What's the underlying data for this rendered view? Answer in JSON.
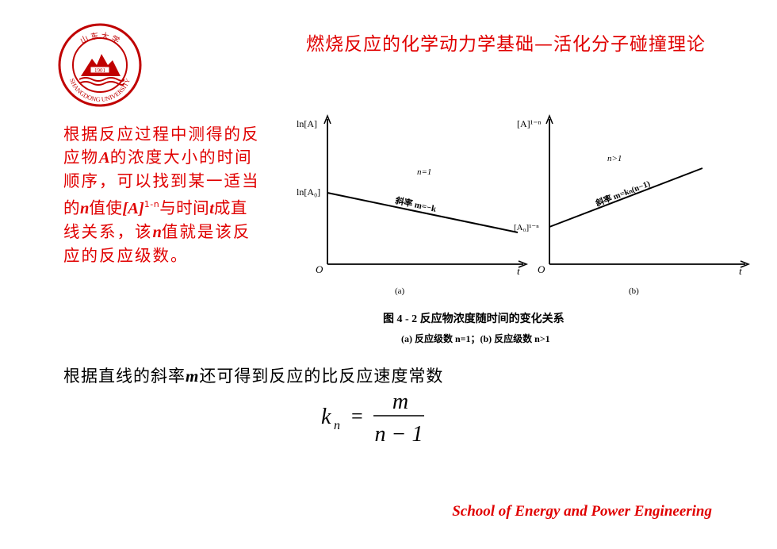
{
  "header": {
    "title": "燃烧反应的化学动力学基础—活化分子碰撞理论"
  },
  "logo": {
    "university": "SHANGDONG UNIVERSITY",
    "year": "1901",
    "seal_chars": "山 东 大 学"
  },
  "left_paragraph": {
    "line1": "根据反应过程中测得的反",
    "line2_a": "应物",
    "line2_var": "A",
    "line2_b": "的浓度大小的时间",
    "line3": "顺序，可以找到某一适当",
    "line4_a": "的",
    "line4_var1": "n",
    "line4_b": "值使",
    "line4_var2": "[A]",
    "line4_sup": "1-n",
    "line4_c": "与时间",
    "line4_var3": "t",
    "line4_d": "成直",
    "line5_a": "线关系，该",
    "line5_var": "n",
    "line5_b": "值就是该反",
    "line6": "应的反应级数。"
  },
  "figure": {
    "panel_a": {
      "ylabel": "ln[A]",
      "y0_label": "ln[A₀]",
      "origin": "O",
      "xlabel": "t",
      "order_label": "n=1",
      "slope_label": "斜率 m=−k",
      "panel_label": "(a)"
    },
    "panel_b": {
      "ylabel": "[A]¹⁻ⁿ",
      "y0_label": "[A₀]¹⁻ⁿ",
      "origin": "O",
      "xlabel": "t",
      "order_label": "n>1",
      "slope_label": "斜率 m=kₙ(n−1)",
      "panel_label": "(b)"
    },
    "caption": "图 4 - 2   反应物浓度随时间的变化关系",
    "subcaption": "(a) 反应级数 n=1；(b) 反应级数 n>1"
  },
  "bottom_text": {
    "a": "根据直线的斜率",
    "var": "m",
    "b": "还可得到反应的比反应速度常数"
  },
  "formula": {
    "lhs": "k",
    "lhs_sub": "n",
    "eq": "=",
    "numerator": "m",
    "denominator": "n − 1"
  },
  "footer": {
    "text": "School of Energy and Power Engineering"
  },
  "colors": {
    "accent": "#e00000",
    "text": "#000000"
  }
}
